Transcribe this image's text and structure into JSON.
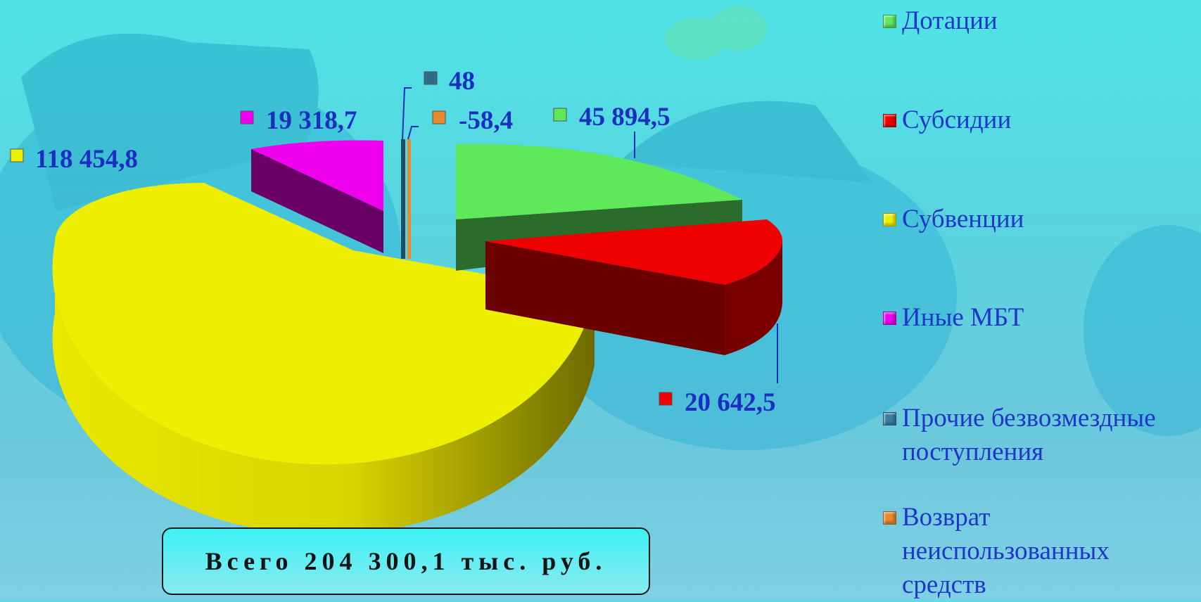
{
  "chart_data": {
    "type": "pie",
    "categories": [
      "Дотации",
      "Субсидии",
      "Субвенции",
      "Иные МБТ",
      "Прочие безвозмездные поступления",
      "Возврат неиспользованных средств"
    ],
    "values": [
      45894.5,
      20642.5,
      118454.8,
      19318.7,
      48,
      -58.4
    ],
    "data_labels": [
      "45 894,5",
      "20 642,5",
      "118 454,8",
      "19 318,7",
      "48",
      "-58,4"
    ],
    "colors": [
      "#5ee85a",
      "#ee0000",
      "#eeee00",
      "#ee00ee",
      "#2f6d86",
      "#e8892c"
    ],
    "legend_placement": "right",
    "title": ""
  },
  "legend": {
    "items": [
      {
        "label": "Дотации",
        "color": "#5ee85a"
      },
      {
        "label": "Субсидии",
        "color": "#ee0000"
      },
      {
        "label": "Субвенции",
        "color": "#eeee00"
      },
      {
        "label": "Иные МБТ",
        "color": "#ee00ee"
      },
      {
        "label": "Прочие безвозмездные\nпоступления",
        "color": "#3a7ea0"
      },
      {
        "label": "Возврат\nнеиспользованных\nсредств",
        "color": "#e8892c"
      }
    ]
  },
  "total": {
    "text": "Всего 204 300,1 тыс. руб."
  }
}
